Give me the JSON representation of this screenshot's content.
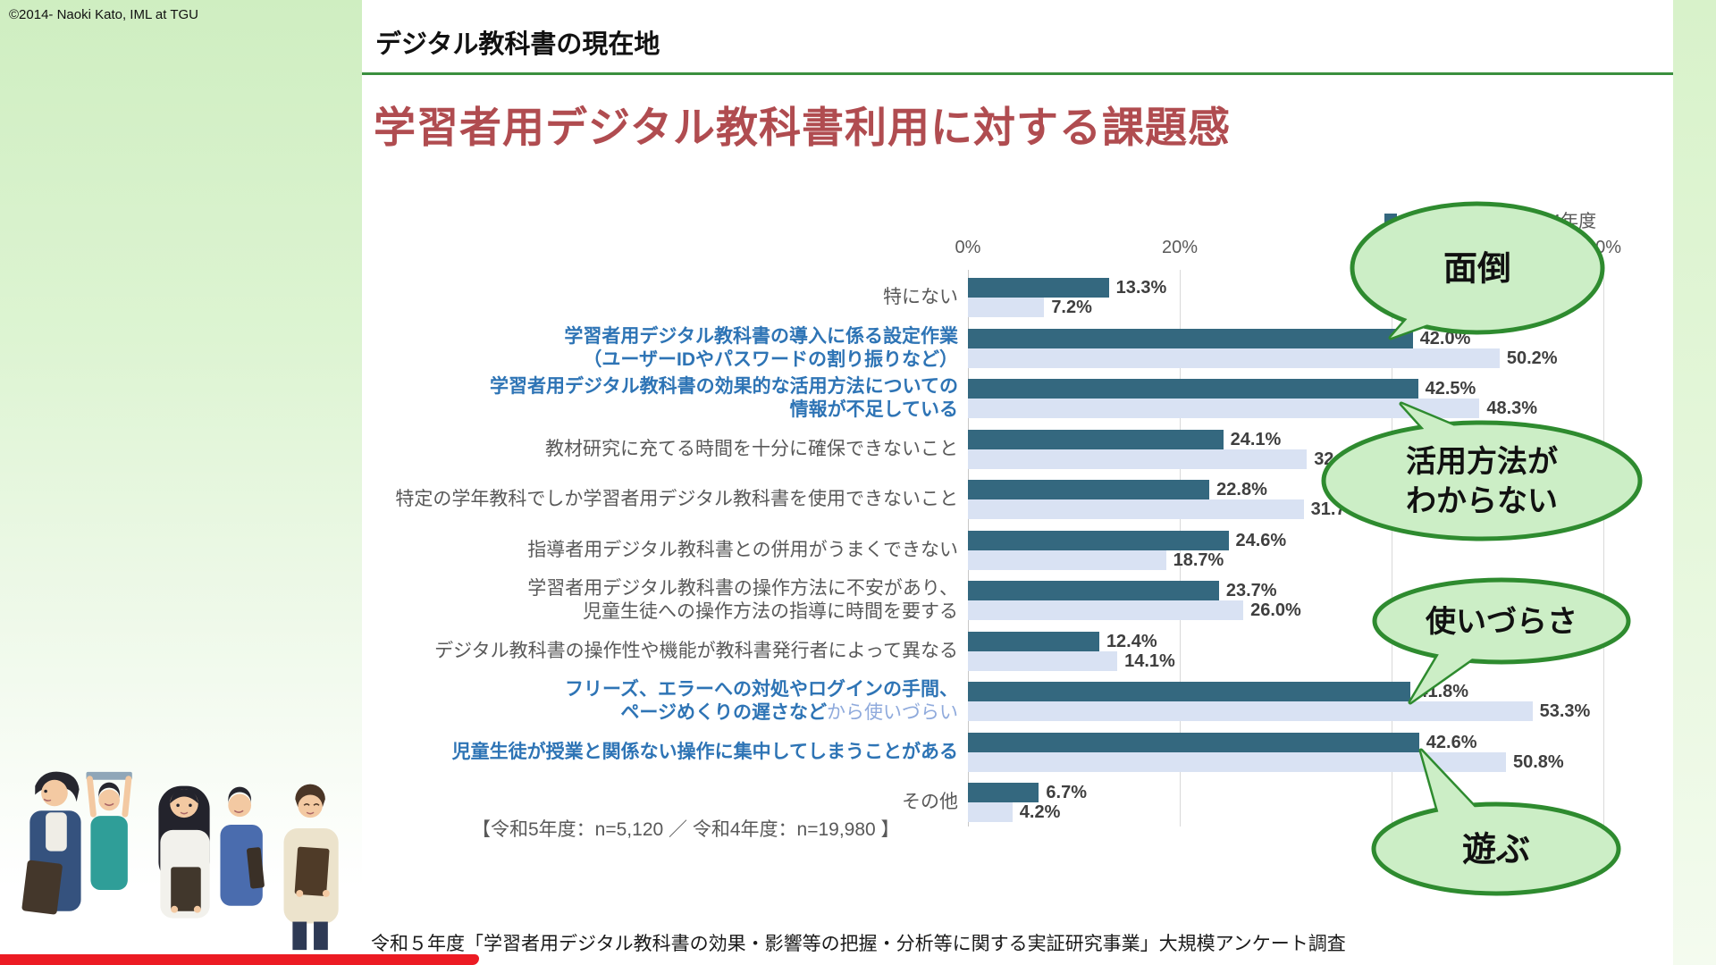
{
  "slide": {
    "copyright": "©2014- Naoki Kato, IML at TGU",
    "header": "デジタル教科書の現在地",
    "title": "学習者用デジタル教科書利用に対する課題感",
    "source": "令和５年度「学習者用デジタル教科書の効果・影響等の把握・分析等に関する実証研究事業」大規模アンケート調査"
  },
  "chart_data": {
    "type": "bar",
    "orientation": "horizontal",
    "axis": {
      "position": "top",
      "unit": "%",
      "ticks": [
        "0%",
        "20%",
        "40%",
        "60%"
      ],
      "tick_values": [
        0,
        20,
        40,
        60
      ],
      "max": 60,
      "grid": true
    },
    "legend_position": "top-right",
    "legend": [
      {
        "label": "令和5年度",
        "color": "#34687f"
      },
      {
        "label": "令和4年度",
        "color": "#d9e2f3"
      }
    ],
    "note": "【令和5年度：n=5,120 ／ 令和4年度：n=19,980 】",
    "categories": [
      {
        "lines": [
          [
            {
              "t": "特にない",
              "s": "g"
            }
          ]
        ]
      },
      {
        "lines": [
          [
            {
              "t": "学習者用デジタル教科書の導入に係る設定作業",
              "s": "b"
            }
          ],
          [
            {
              "t": "（ユーザーIDやパスワードの割り振りなど）",
              "s": "b"
            }
          ]
        ]
      },
      {
        "lines": [
          [
            {
              "t": "学習者用デジタル教科書の効果的な活用方法についての",
              "s": "b"
            }
          ],
          [
            {
              "t": "情報が不足している",
              "s": "b"
            }
          ]
        ]
      },
      {
        "lines": [
          [
            {
              "t": "教材研究に充てる時間を十分に確保できないこと",
              "s": "g"
            }
          ]
        ]
      },
      {
        "lines": [
          [
            {
              "t": "特定の学年教科でしか学習者用デジタル教科書を使用できないこと",
              "s": "g"
            }
          ]
        ]
      },
      {
        "lines": [
          [
            {
              "t": "指導者用デジタル教科書との併用がうまくできない",
              "s": "g"
            }
          ]
        ]
      },
      {
        "lines": [
          [
            {
              "t": "学習者用デジタル教科書の操作方法に不安があり、",
              "s": "g"
            }
          ],
          [
            {
              "t": "児童生徒への操作方法の指導に時間を要する",
              "s": "g"
            }
          ]
        ]
      },
      {
        "lines": [
          [
            {
              "t": "デジタル教科書の操作性や機能が教科書発行者によって異なる",
              "s": "g"
            }
          ]
        ]
      },
      {
        "lines": [
          [
            {
              "t": "フリーズ、エラーへの対処やログインの手間、",
              "s": "b"
            }
          ],
          [
            {
              "t": "ページめくりの遅さなど",
              "s": "b"
            },
            {
              "t": "から使いづらい",
              "s": "lb"
            }
          ]
        ]
      },
      {
        "lines": [
          [
            {
              "t": "児童生徒が授業と関係ない操作に集中してしまうことがある",
              "s": "b"
            }
          ]
        ]
      },
      {
        "lines": [
          [
            {
              "t": "その他",
              "s": "g"
            }
          ]
        ]
      }
    ],
    "series": [
      {
        "name": "令和5年度",
        "color": "#34687f",
        "values": [
          13.3,
          42.0,
          42.5,
          24.1,
          22.8,
          24.6,
          23.7,
          12.4,
          41.8,
          42.6,
          6.7
        ]
      },
      {
        "name": "令和4年度",
        "color": "#d9e2f3",
        "values": [
          7.2,
          50.2,
          48.3,
          32.0,
          31.7,
          18.7,
          26.0,
          14.1,
          53.3,
          50.8,
          4.2
        ]
      }
    ]
  },
  "bubbles": [
    {
      "lines": [
        "面倒"
      ]
    },
    {
      "lines": [
        "活用方法が",
        "わからない"
      ]
    },
    {
      "lines": [
        "使いづらさ"
      ]
    },
    {
      "lines": [
        "遊ぶ"
      ]
    }
  ],
  "colors": {
    "bar_dark": "#34687f",
    "bar_light": "#d9e2f3",
    "bubble_fill": "#cceec6",
    "bubble_stroke": "#2e8b2f",
    "title_red": "#b04c50",
    "rule_green": "#3a8f3e",
    "red_bar": "#ec1b23",
    "category_gray": "#595959",
    "category_blue": "#2e74b5",
    "category_lightblue": "#8faadc",
    "value_label": "#3f3f3f"
  }
}
